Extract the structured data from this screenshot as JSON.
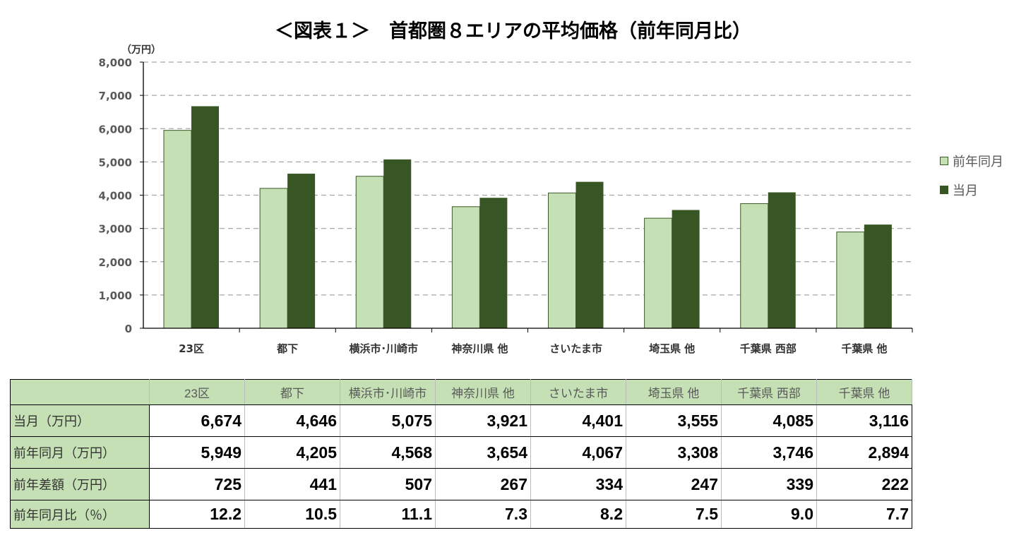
{
  "chart_data": {
    "type": "bar",
    "title": "＜図表１＞　首都圏８エリアの平均価格（前年同月比）",
    "ylabel": "（万円）",
    "ylim": [
      0,
      8000
    ],
    "yticks": [
      "0",
      "1,000",
      "2,000",
      "3,000",
      "4,000",
      "5,000",
      "6,000",
      "7,000",
      "8,000"
    ],
    "grid": true,
    "legend_position": "right",
    "categories": [
      "23区",
      "都下",
      "横浜市･川崎市",
      "神奈川県 他",
      "さいたま市",
      "埼玉県 他",
      "千葉県 西部",
      "千葉県 他"
    ],
    "series": [
      {
        "name": "前年同月",
        "color": "#c5e0b4",
        "values": [
          5949,
          4205,
          4568,
          3654,
          4067,
          3308,
          3746,
          2894
        ]
      },
      {
        "name": "当月",
        "color": "#375623",
        "values": [
          6674,
          4646,
          5075,
          3921,
          4401,
          3555,
          4085,
          3116
        ]
      }
    ]
  },
  "table": {
    "rows": [
      {
        "label": "当月（万円）",
        "values": [
          "6,674",
          "4,646",
          "5,075",
          "3,921",
          "4,401",
          "3,555",
          "4,085",
          "3,116"
        ]
      },
      {
        "label": "前年同月（万円）",
        "values": [
          "5,949",
          "4,205",
          "4,568",
          "3,654",
          "4,067",
          "3,308",
          "3,746",
          "2,894"
        ]
      },
      {
        "label": "前年差額（万円）",
        "values": [
          "725",
          "441",
          "507",
          "267",
          "334",
          "247",
          "339",
          "222"
        ]
      },
      {
        "label": "前年同月比（％）",
        "values": [
          "12.2",
          "10.5",
          "11.1",
          "7.3",
          "8.2",
          "7.5",
          "9.0",
          "7.7"
        ]
      }
    ]
  }
}
